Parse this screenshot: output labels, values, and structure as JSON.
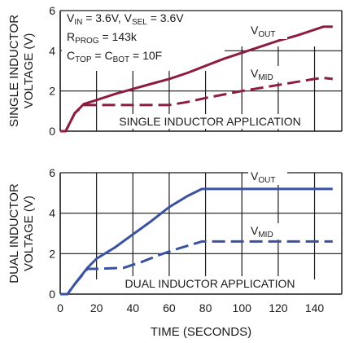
{
  "chart_data": [
    {
      "type": "line",
      "title": "SINGLE INDUCTOR APPLICATION",
      "ylabel": [
        "SINGLE INDUCTOR",
        "VOLTAGE (V)"
      ],
      "xlabel": "",
      "xlim": [
        0,
        155
      ],
      "ylim": [
        0,
        6
      ],
      "xticks": [
        0,
        20,
        40,
        60,
        80,
        100,
        120,
        140
      ],
      "yticks": [
        0,
        2,
        4,
        6
      ],
      "grid": true,
      "line_color": "#8c1d3f",
      "conditions": [
        {
          "main": "V",
          "sub": "IN",
          "rest": " = 3.6V, V",
          "sub2": "SEL",
          "rest2": " = 3.6V"
        },
        {
          "main": "R",
          "sub": "PROG",
          "rest": " = 143k",
          "sub2": "",
          "rest2": ""
        },
        {
          "main": "C",
          "sub": "TOP",
          "rest": " = C",
          "sub2": "BOT",
          "rest2": " = 10F"
        }
      ],
      "series": [
        {
          "name": "V",
          "name_sub": "OUT",
          "style": "solid",
          "x": [
            0,
            3,
            8,
            13,
            20,
            30,
            40,
            50,
            60,
            70,
            80,
            90,
            100,
            110,
            120,
            130,
            140,
            145,
            150
          ],
          "y": [
            0,
            0,
            0.9,
            1.35,
            1.55,
            1.85,
            2.1,
            2.35,
            2.6,
            2.9,
            3.25,
            3.6,
            3.9,
            4.2,
            4.5,
            4.75,
            5.05,
            5.2,
            5.2
          ]
        },
        {
          "name": "V",
          "name_sub": "MID",
          "style": "dashed",
          "x": [
            0,
            3,
            8,
            13,
            20,
            40,
            60,
            70,
            80,
            100,
            120,
            140,
            145,
            150
          ],
          "y": [
            0,
            0,
            0.9,
            1.3,
            1.3,
            1.3,
            1.3,
            1.45,
            1.65,
            2.0,
            2.3,
            2.6,
            2.65,
            2.6
          ]
        }
      ]
    },
    {
      "type": "line",
      "title": "DUAL INDUCTOR APPLICATION",
      "ylabel": [
        "DUAL INDUCTOR",
        "VOLTAGE (V)"
      ],
      "xlabel": "TIME (SECONDS)",
      "xlim": [
        0,
        155
      ],
      "ylim": [
        0,
        6
      ],
      "xticks": [
        0,
        20,
        40,
        60,
        80,
        100,
        120,
        140
      ],
      "yticks": [
        0,
        2,
        4,
        6
      ],
      "grid": true,
      "line_color": "#3a52a0",
      "series": [
        {
          "name": "V",
          "name_sub": "OUT",
          "style": "solid",
          "x": [
            0,
            4,
            8,
            15,
            20,
            30,
            40,
            50,
            60,
            70,
            78,
            150
          ],
          "y": [
            0,
            0,
            0.5,
            1.3,
            1.75,
            2.3,
            2.95,
            3.6,
            4.3,
            4.85,
            5.2,
            5.2
          ]
        },
        {
          "name": "V",
          "name_sub": "MID",
          "style": "dashed",
          "x": [
            0,
            4,
            8,
            15,
            20,
            35,
            45,
            55,
            65,
            78,
            150
          ],
          "y": [
            0,
            0,
            0.5,
            1.25,
            1.25,
            1.3,
            1.6,
            1.95,
            2.25,
            2.6,
            2.6
          ]
        }
      ]
    }
  ]
}
